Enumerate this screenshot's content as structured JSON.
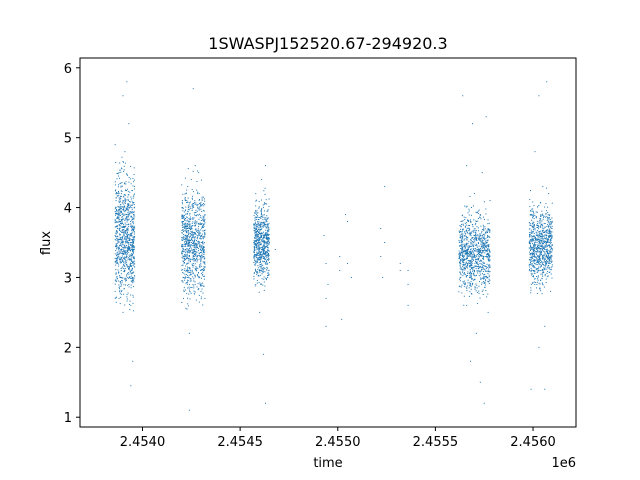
{
  "chart_data": {
    "type": "scatter",
    "title": "1SWASPJ152520.67-294920.3",
    "xlabel": "time",
    "ylabel": "flux",
    "x_offset_label": "1e6",
    "x_scale": 1000000,
    "xlim": [
      2.45368,
      2.45622
    ],
    "ylim": [
      0.86,
      6.14
    ],
    "x_ticks": [
      2.454,
      2.4545,
      2.455,
      2.4555,
      2.456
    ],
    "x_tick_labels": [
      "2.4540",
      "2.4545",
      "2.4550",
      "2.4555",
      "2.4560"
    ],
    "y_ticks": [
      1,
      2,
      3,
      4,
      5,
      6
    ],
    "y_tick_labels": [
      "1",
      "2",
      "3",
      "4",
      "5",
      "6"
    ],
    "grid": false,
    "marker_color": "#1f77b4",
    "series": [
      {
        "values_note": "dense point clusters approximated as [time(1e6), flux] samples",
        "points": [
          [
            2.45386,
            3.6
          ],
          [
            2.45386,
            4.9
          ],
          [
            2.45386,
            2.8
          ],
          [
            2.45387,
            4.2
          ],
          [
            2.45387,
            3.2
          ],
          [
            2.45388,
            3.9
          ],
          [
            2.45388,
            4.5
          ],
          [
            2.45388,
            2.7
          ],
          [
            2.45389,
            3.4
          ],
          [
            2.45389,
            3.0
          ],
          [
            2.4539,
            5.6
          ],
          [
            2.4539,
            4.0
          ],
          [
            2.4539,
            2.5
          ],
          [
            2.45391,
            3.1
          ],
          [
            2.45391,
            4.8
          ],
          [
            2.45392,
            5.8
          ],
          [
            2.45392,
            3.3
          ],
          [
            2.45393,
            2.9
          ],
          [
            2.45393,
            5.2
          ],
          [
            2.45394,
            3.5
          ],
          [
            2.45394,
            2.6
          ],
          [
            2.45395,
            3.0
          ],
          [
            2.45395,
            1.8
          ],
          [
            2.45394,
            1.45
          ],
          [
            2.45421,
            3.8
          ],
          [
            2.45421,
            2.7
          ],
          [
            2.45422,
            3.4
          ],
          [
            2.45422,
            4.1
          ],
          [
            2.45423,
            3.0
          ],
          [
            2.45423,
            3.7
          ],
          [
            2.45424,
            1.1
          ],
          [
            2.45424,
            2.2
          ],
          [
            2.45425,
            3.5
          ],
          [
            2.45425,
            4.4
          ],
          [
            2.45426,
            5.7
          ],
          [
            2.45426,
            3.2
          ],
          [
            2.45427,
            4.6
          ],
          [
            2.45427,
            2.9
          ],
          [
            2.45428,
            3.6
          ],
          [
            2.45429,
            4.2
          ],
          [
            2.45429,
            3.0
          ],
          [
            2.4543,
            2.8
          ],
          [
            2.45431,
            3.4
          ],
          [
            2.45432,
            3.9
          ],
          [
            2.45432,
            2.7
          ],
          [
            2.45457,
            3.5
          ],
          [
            2.45458,
            4.2
          ],
          [
            2.45458,
            2.9
          ],
          [
            2.45459,
            3.8
          ],
          [
            2.4546,
            3.1
          ],
          [
            2.4546,
            2.5
          ],
          [
            2.45461,
            4.4
          ],
          [
            2.45461,
            3.6
          ],
          [
            2.45462,
            1.9
          ],
          [
            2.45462,
            3.3
          ],
          [
            2.45463,
            4.6
          ],
          [
            2.45463,
            1.2
          ],
          [
            2.45464,
            3.0
          ],
          [
            2.45465,
            3.5
          ],
          [
            2.45468,
            3.4
          ],
          [
            2.45493,
            3.6
          ],
          [
            2.45494,
            3.2
          ],
          [
            2.45494,
            2.3
          ],
          [
            2.45494,
            2.7
          ],
          [
            2.45495,
            2.9
          ],
          [
            2.45501,
            3.3
          ],
          [
            2.45501,
            3.1
          ],
          [
            2.45502,
            2.4
          ],
          [
            2.45504,
            3.9
          ],
          [
            2.45505,
            3.8
          ],
          [
            2.45505,
            3.2
          ],
          [
            2.45507,
            3.0
          ],
          [
            2.45522,
            3.3
          ],
          [
            2.45522,
            3.7
          ],
          [
            2.45523,
            3.0
          ],
          [
            2.45524,
            4.3
          ],
          [
            2.45524,
            3.5
          ],
          [
            2.45532,
            3.2
          ],
          [
            2.45532,
            3.1
          ],
          [
            2.45536,
            2.6
          ],
          [
            2.45536,
            3.1
          ],
          [
            2.45536,
            2.9
          ],
          [
            2.45563,
            3.0
          ],
          [
            2.45564,
            3.3
          ],
          [
            2.45564,
            5.6
          ],
          [
            2.45565,
            2.9
          ],
          [
            2.45565,
            3.6
          ],
          [
            2.45566,
            4.6
          ],
          [
            2.45566,
            2.6
          ],
          [
            2.45567,
            3.8
          ],
          [
            2.45568,
            3.4
          ],
          [
            2.45568,
            1.8
          ],
          [
            2.45569,
            5.2
          ],
          [
            2.4557,
            3.1
          ],
          [
            2.4557,
            4.2
          ],
          [
            2.45571,
            2.2
          ],
          [
            2.45572,
            3.5
          ],
          [
            2.45573,
            1.5
          ],
          [
            2.45573,
            3.9
          ],
          [
            2.45574,
            2.8
          ],
          [
            2.45574,
            4.5
          ],
          [
            2.45575,
            1.2
          ],
          [
            2.45576,
            3.3
          ],
          [
            2.45576,
            5.3
          ],
          [
            2.45577,
            3.7
          ],
          [
            2.45577,
            2.5
          ],
          [
            2.45578,
            4.1
          ],
          [
            2.45599,
            3.4
          ],
          [
            2.45599,
            1.4
          ],
          [
            2.456,
            3.1
          ],
          [
            2.45601,
            3.7
          ],
          [
            2.45601,
            4.8
          ],
          [
            2.45602,
            2.9
          ],
          [
            2.45602,
            3.5
          ],
          [
            2.45603,
            5.6
          ],
          [
            2.45603,
            2.0
          ],
          [
            2.45604,
            3.9
          ],
          [
            2.45605,
            3.3
          ],
          [
            2.45605,
            4.3
          ],
          [
            2.45606,
            2.3
          ],
          [
            2.45606,
            1.4
          ],
          [
            2.45607,
            5.8
          ],
          [
            2.45607,
            3.6
          ],
          [
            2.45608,
            4.2
          ],
          [
            2.45608,
            3.2
          ],
          [
            2.45609,
            3.8
          ],
          [
            2.45609,
            2.8
          ]
        ]
      }
    ],
    "clusters": [
      {
        "x_center": 2.45391,
        "x_halfwidth": 5e-05,
        "y_mean": 3.6,
        "y_spread": 0.7,
        "n": 900
      },
      {
        "x_center": 2.45426,
        "x_halfwidth": 6e-05,
        "y_mean": 3.5,
        "y_spread": 0.6,
        "n": 850
      },
      {
        "x_center": 2.45461,
        "x_halfwidth": 4e-05,
        "y_mean": 3.5,
        "y_spread": 0.45,
        "n": 650
      },
      {
        "x_center": 2.4557,
        "x_halfwidth": 8e-05,
        "y_mean": 3.35,
        "y_spread": 0.45,
        "n": 900
      },
      {
        "x_center": 2.45604,
        "x_halfwidth": 6e-05,
        "y_mean": 3.45,
        "y_spread": 0.45,
        "n": 800
      }
    ]
  }
}
